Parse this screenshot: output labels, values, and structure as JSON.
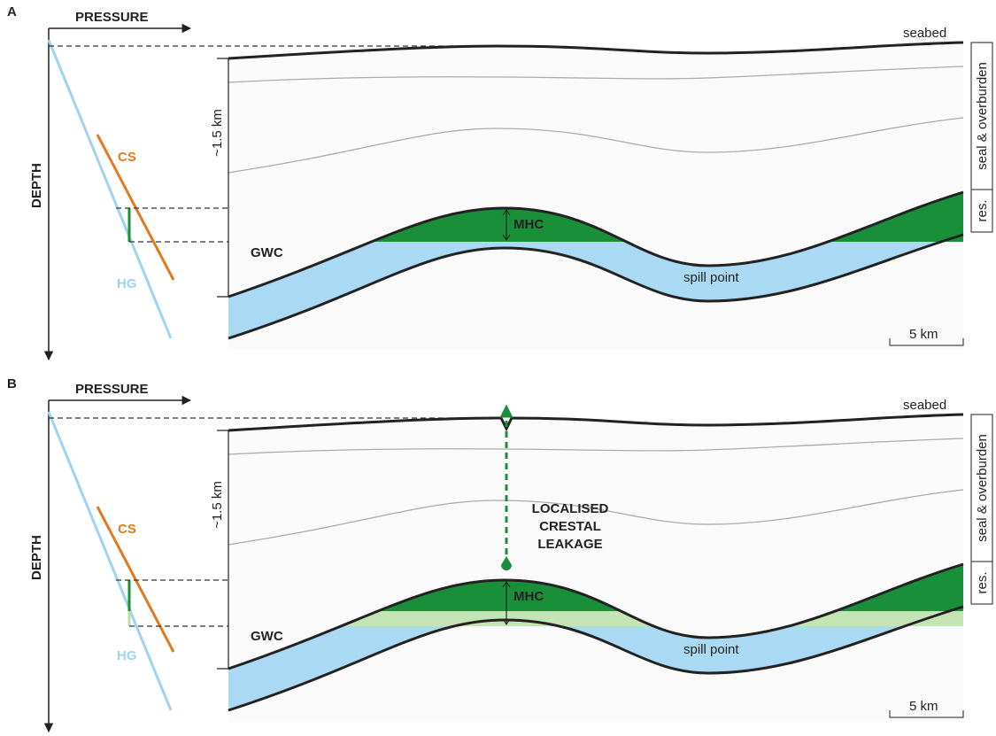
{
  "panels": [
    {
      "label": "A",
      "pressure": "PRESSURE",
      "depth": "DEPTH",
      "cs": "CS",
      "hg": "HG",
      "thickness": "~1.5 km",
      "seabed": "seabed",
      "mhc": "MHC",
      "gwc": "GWC",
      "spill_point": "spill point",
      "scale": "5 km",
      "seal": "seal & overburden",
      "reservoir": "res."
    },
    {
      "label": "B",
      "pressure": "PRESSURE",
      "depth": "DEPTH",
      "cs": "CS",
      "hg": "HG",
      "thickness": "~1.5 km",
      "seabed": "seabed",
      "mhc": "MHC",
      "gwc": "GWC",
      "spill_point": "spill point",
      "scale": "5 km",
      "seal": "seal & overburden",
      "reservoir": "res.",
      "leakage": [
        "LOCALISED",
        "CRESTAL",
        "LEAKAGE"
      ]
    }
  ]
}
